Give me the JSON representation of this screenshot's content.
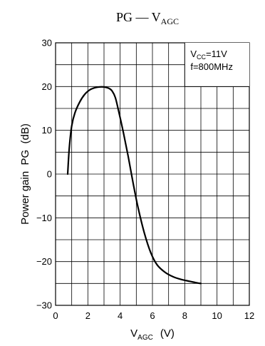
{
  "chart_data": {
    "type": "line",
    "title": {
      "main": "PG — V",
      "sub": "AGC"
    },
    "xlabel": {
      "main": "V",
      "sub": "AGC",
      "unit": "(V)"
    },
    "ylabel": "Power gain  PG  (dB)",
    "xlim": [
      0,
      12
    ],
    "ylim": [
      -30,
      30
    ],
    "x_ticks": [
      "0",
      "2",
      "4",
      "6",
      "8",
      "10",
      "12"
    ],
    "y_ticks": [
      "30",
      "20",
      "10",
      "0",
      "−10",
      "−20",
      "−30"
    ],
    "grid": true,
    "annotation": {
      "line1_main": "V",
      "line1_sub": "CC",
      "line1_rest": "=11V",
      "line2": "f=800MHz"
    },
    "series": [
      {
        "color": "#000000",
        "x": [
          0.75,
          0.85,
          1.0,
          1.2,
          1.5,
          1.8,
          2.1,
          2.4,
          2.7,
          3.0,
          3.3,
          3.5,
          3.7,
          3.9,
          4.2,
          4.5,
          4.8,
          5.1,
          5.5,
          5.9,
          6.3,
          6.8,
          7.3,
          7.8,
          8.3,
          8.8,
          9.0
        ],
        "y": [
          0,
          6,
          11,
          14,
          16.5,
          18.2,
          19.2,
          19.7,
          19.9,
          19.9,
          19.6,
          19.0,
          17.5,
          14.5,
          9.5,
          4.0,
          -2.0,
          -7.5,
          -13.5,
          -18.0,
          -20.8,
          -22.5,
          -23.5,
          -24.1,
          -24.5,
          -24.9,
          -25.0
        ]
      }
    ]
  }
}
